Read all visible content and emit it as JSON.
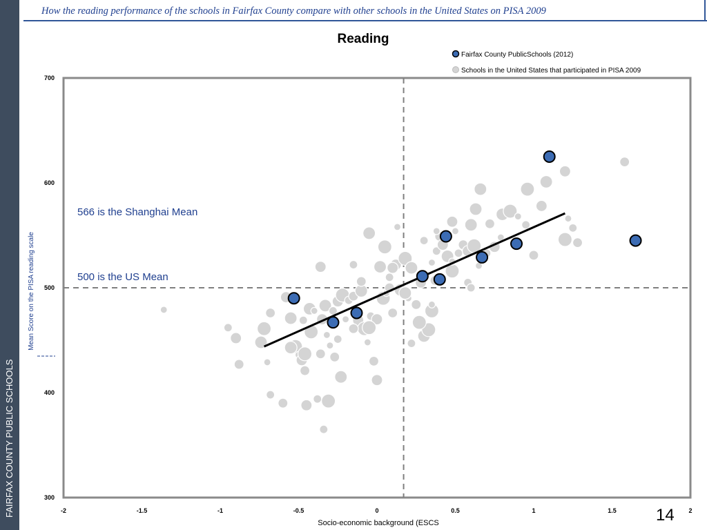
{
  "sidebar": {
    "text": "FAIRFAX COUNTY PUBLIC SCHOOLS"
  },
  "header": {
    "title": "How the reading performance of the schools in Fairfax County compare with other schools in the United States on PISA 2009"
  },
  "page_number": "14",
  "chart_data": {
    "type": "scatter",
    "title": "Reading",
    "xlabel": "Socio-economic background (ESCS",
    "ylabel": "Mean Score on the PISA reading scale",
    "xlim": [
      -2,
      2
    ],
    "ylim": [
      300,
      700
    ],
    "x_ticks": [
      "-2",
      "-1.5",
      "-1",
      "-0.5",
      "0",
      "0.5",
      "1",
      "1.5",
      "2"
    ],
    "y_ticks": [
      "300",
      "400",
      "500",
      "600",
      "700"
    ],
    "legend": {
      "placement": "top-right",
      "entries": [
        "Fairfax County PublicSchools (2012)",
        "Schools in the United States that participated in PISA 2009"
      ],
      "colors": [
        "#3c6cb4",
        "#d4d4d4"
      ]
    },
    "reference_lines": {
      "x": 0.17,
      "y": 500
    },
    "annotations": [
      "566 is the Shanghai Mean",
      "500 is the US Mean"
    ],
    "trend_line": {
      "x": [
        -0.72,
        1.2
      ],
      "y": [
        444,
        571
      ]
    },
    "series": [
      {
        "name": "Fairfax County PublicSchools (2012)",
        "color": "#3c6cb4",
        "x": [
          -0.53,
          -0.28,
          -0.13,
          0.29,
          0.44,
          0.4,
          0.67,
          0.89,
          1.1,
          1.65
        ],
        "y": [
          490,
          467,
          476,
          511,
          549,
          508,
          529,
          542,
          625,
          545
        ]
      },
      {
        "name": "Schools in the United States that participated in PISA 2009",
        "color": "#d4d4d4",
        "x": [
          -1.36,
          -0.95,
          -0.88,
          -0.9,
          -0.74,
          -0.72,
          -0.7,
          -0.68,
          -0.6,
          -0.58,
          -0.55,
          -0.52,
          -0.5,
          -0.47,
          -0.46,
          -0.45,
          -0.43,
          -0.42,
          -0.4,
          -0.38,
          -0.36,
          -0.35,
          -0.33,
          -0.31,
          -0.3,
          -0.28,
          -0.27,
          -0.25,
          -0.23,
          -0.22,
          -0.2,
          -0.18,
          -0.15,
          -0.12,
          -0.1,
          -0.08,
          -0.06,
          -0.04,
          -0.02,
          0.0,
          0.02,
          0.04,
          0.06,
          0.08,
          0.1,
          0.12,
          0.15,
          0.18,
          0.2,
          0.22,
          0.25,
          0.28,
          0.3,
          0.33,
          0.35,
          0.38,
          0.4,
          0.42,
          0.45,
          0.48,
          0.5,
          0.52,
          0.55,
          0.58,
          0.6,
          0.62,
          0.65,
          0.7,
          0.72,
          0.75,
          0.8,
          0.85,
          0.9,
          0.95,
          1.0,
          1.05,
          1.08,
          1.2,
          1.22,
          1.25,
          1.28,
          -0.36,
          -0.05,
          0.05,
          0.13,
          0.3,
          0.37,
          0.1,
          0.18,
          0.35,
          -0.32,
          -0.25,
          -0.15,
          0.0,
          0.22,
          0.27,
          0.48,
          0.58,
          1.58,
          1.2,
          0.66,
          0.96,
          0.79,
          -0.34,
          -0.68,
          -0.48,
          -0.55,
          -0.05,
          0.35,
          -0.15,
          -0.1,
          0.48,
          0.63,
          -0.46,
          0.38,
          0.6,
          0.08
        ],
        "y": [
          479,
          462,
          427,
          452,
          448,
          461,
          429,
          398,
          390,
          491,
          471,
          444,
          436,
          469,
          421,
          388,
          480,
          458,
          478,
          394,
          437,
          470,
          483,
          392,
          445,
          478,
          434,
          487,
          415,
          493,
          470,
          488,
          492,
          469,
          497,
          461,
          448,
          473,
          430,
          470,
          520,
          490,
          495,
          510,
          476,
          522,
          498,
          528,
          490,
          447,
          484,
          505,
          454,
          460,
          524,
          535,
          549,
          541,
          530,
          516,
          554,
          533,
          541,
          535,
          560,
          540,
          521,
          533,
          561,
          539,
          570,
          573,
          568,
          560,
          531,
          578,
          601,
          546,
          566,
          557,
          543,
          520,
          552,
          539,
          558,
          545,
          507,
          519,
          495,
          478,
          455,
          451,
          461,
          412,
          519,
          467,
          525,
          505,
          620,
          611,
          594,
          594,
          548,
          365,
          476,
          431,
          443,
          462,
          484,
          522,
          506,
          563,
          575,
          437,
          554,
          500,
          500
        ]
      }
    ]
  }
}
